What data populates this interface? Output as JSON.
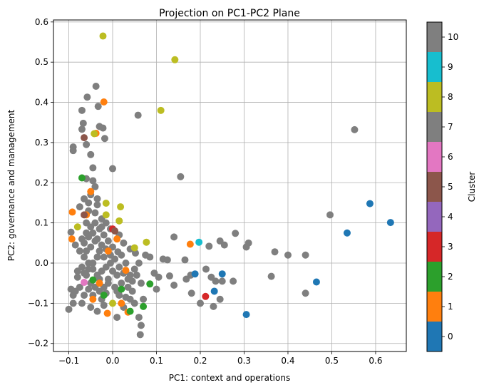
{
  "chart_data": {
    "type": "scatter",
    "title": "Projection on PC1-PC2 Plane",
    "xlabel": "PC1: context and operations",
    "ylabel": "PC2: governance and management",
    "xlim": [
      -0.135,
      0.67
    ],
    "ylim": [
      -0.22,
      0.605
    ],
    "x_ticks": [
      -0.1,
      0.0,
      0.1,
      0.2,
      0.3,
      0.4,
      0.5,
      0.6
    ],
    "y_ticks": [
      -0.2,
      -0.1,
      0.0,
      0.1,
      0.2,
      0.3,
      0.4,
      0.5,
      0.6
    ],
    "x_tick_labels": [
      "−0.1",
      "0.0",
      "0.1",
      "0.2",
      "0.3",
      "0.4",
      "0.5",
      "0.6"
    ],
    "y_tick_labels": [
      "−0.2",
      "−0.1",
      "0.0",
      "0.1",
      "0.2",
      "0.3",
      "0.4",
      "0.5",
      "0.6"
    ],
    "grid": true,
    "colorbar": {
      "label": "Cluster",
      "ticks": [
        "0",
        "1",
        "2",
        "3",
        "4",
        "5",
        "6",
        "7",
        "8",
        "9",
        "10"
      ],
      "colors": [
        "#1f77b4",
        "#ff7f0e",
        "#2ca02c",
        "#d62728",
        "#9467bd",
        "#8c564b",
        "#e377c2",
        "#7f7f7f",
        "#bcbd22",
        "#17becf",
        "#7f7f7f"
      ]
    },
    "points": [
      {
        "x": 0.587,
        "y": 0.148,
        "c": 0
      },
      {
        "x": 0.634,
        "y": 0.101,
        "c": 0
      },
      {
        "x": 0.535,
        "y": 0.075,
        "c": 0
      },
      {
        "x": 0.465,
        "y": -0.047,
        "c": 0
      },
      {
        "x": 0.305,
        "y": -0.128,
        "c": 0
      },
      {
        "x": 0.232,
        "y": -0.07,
        "c": 0
      },
      {
        "x": 0.188,
        "y": -0.027,
        "c": 0
      },
      {
        "x": 0.25,
        "y": -0.027,
        "c": 0
      },
      {
        "x": -0.02,
        "y": 0.401,
        "c": 1
      },
      {
        "x": -0.038,
        "y": 0.323,
        "c": 1
      },
      {
        "x": -0.092,
        "y": 0.127,
        "c": 1
      },
      {
        "x": -0.05,
        "y": 0.178,
        "c": 1
      },
      {
        "x": -0.093,
        "y": 0.06,
        "c": 1
      },
      {
        "x": -0.06,
        "y": 0.12,
        "c": 1
      },
      {
        "x": 0.177,
        "y": 0.047,
        "c": 1
      },
      {
        "x": -0.012,
        "y": -0.125,
        "c": 1
      },
      {
        "x": 0.035,
        "y": -0.122,
        "c": 1
      },
      {
        "x": -0.045,
        "y": -0.09,
        "c": 1
      },
      {
        "x": -0.01,
        "y": 0.03,
        "c": 1
      },
      {
        "x": 0.02,
        "y": -0.1,
        "c": 1
      },
      {
        "x": 0.03,
        "y": -0.018,
        "c": 1
      },
      {
        "x": -0.03,
        "y": -0.05,
        "c": 1
      },
      {
        "x": 0.01,
        "y": 0.06,
        "c": 1
      },
      {
        "x": -0.07,
        "y": 0.212,
        "c": 2
      },
      {
        "x": -0.045,
        "y": -0.042,
        "c": 2
      },
      {
        "x": -0.02,
        "y": -0.08,
        "c": 2
      },
      {
        "x": 0.04,
        "y": -0.12,
        "c": 2
      },
      {
        "x": 0.07,
        "y": -0.108,
        "c": 2
      },
      {
        "x": 0.085,
        "y": -0.052,
        "c": 2
      },
      {
        "x": 0.02,
        "y": -0.065,
        "c": 2
      },
      {
        "x": 0.212,
        "y": -0.083,
        "c": 3
      },
      {
        "x": 0.0,
        "y": 0.085,
        "c": 3
      },
      {
        "x": -0.065,
        "y": 0.312,
        "c": 5
      },
      {
        "x": -0.065,
        "y": 0.12,
        "c": 5
      },
      {
        "x": 0.005,
        "y": 0.08,
        "c": 5
      },
      {
        "x": -0.065,
        "y": -0.048,
        "c": 6
      },
      {
        "x": 0.197,
        "y": 0.052,
        "c": 9
      },
      {
        "x": -0.022,
        "y": 0.565,
        "c": 8
      },
      {
        "x": 0.142,
        "y": 0.506,
        "c": 8
      },
      {
        "x": 0.11,
        "y": 0.38,
        "c": 8
      },
      {
        "x": -0.042,
        "y": 0.322,
        "c": 8
      },
      {
        "x": -0.015,
        "y": 0.149,
        "c": 8
      },
      {
        "x": 0.018,
        "y": 0.14,
        "c": 8
      },
      {
        "x": -0.015,
        "y": 0.12,
        "c": 8
      },
      {
        "x": 0.015,
        "y": 0.105,
        "c": 8
      },
      {
        "x": 0.077,
        "y": 0.052,
        "c": 8
      },
      {
        "x": 0.05,
        "y": 0.038,
        "c": 8
      },
      {
        "x": -0.08,
        "y": 0.09,
        "c": 8
      },
      {
        "x": 0.0,
        "y": -0.1,
        "c": 8
      },
      {
        "x": -0.038,
        "y": 0.44,
        "c": 7
      },
      {
        "x": -0.058,
        "y": 0.413,
        "c": 7
      },
      {
        "x": -0.033,
        "y": 0.39,
        "c": 7
      },
      {
        "x": -0.07,
        "y": 0.38,
        "c": 7
      },
      {
        "x": 0.058,
        "y": 0.368,
        "c": 7
      },
      {
        "x": -0.067,
        "y": 0.348,
        "c": 7
      },
      {
        "x": -0.03,
        "y": 0.34,
        "c": 7
      },
      {
        "x": -0.022,
        "y": 0.336,
        "c": 7
      },
      {
        "x": -0.07,
        "y": 0.333,
        "c": 7
      },
      {
        "x": 0.552,
        "y": 0.332,
        "c": 7
      },
      {
        "x": -0.018,
        "y": 0.31,
        "c": 7
      },
      {
        "x": -0.06,
        "y": 0.295,
        "c": 7
      },
      {
        "x": -0.09,
        "y": 0.289,
        "c": 7
      },
      {
        "x": -0.09,
        "y": 0.28,
        "c": 7
      },
      {
        "x": -0.05,
        "y": 0.27,
        "c": 7
      },
      {
        "x": -0.045,
        "y": 0.237,
        "c": 7
      },
      {
        "x": 0.0,
        "y": 0.235,
        "c": 7
      },
      {
        "x": -0.06,
        "y": 0.21,
        "c": 7
      },
      {
        "x": 0.155,
        "y": 0.215,
        "c": 7
      },
      {
        "x": -0.04,
        "y": 0.19,
        "c": 7
      },
      {
        "x": -0.05,
        "y": 0.17,
        "c": 7
      },
      {
        "x": -0.065,
        "y": 0.16,
        "c": 7
      },
      {
        "x": -0.035,
        "y": 0.145,
        "c": 7
      },
      {
        "x": -0.075,
        "y": 0.14,
        "c": 7
      },
      {
        "x": -0.055,
        "y": 0.13,
        "c": 7
      },
      {
        "x": -0.025,
        "y": 0.11,
        "c": 7
      },
      {
        "x": 0.496,
        "y": 0.12,
        "c": 7
      },
      {
        "x": -0.095,
        "y": 0.077,
        "c": 7
      },
      {
        "x": 0.28,
        "y": 0.074,
        "c": 7
      },
      {
        "x": 0.14,
        "y": 0.065,
        "c": 7
      },
      {
        "x": 0.245,
        "y": 0.055,
        "c": 7
      },
      {
        "x": 0.31,
        "y": 0.05,
        "c": 7
      },
      {
        "x": 0.255,
        "y": 0.045,
        "c": 7
      },
      {
        "x": 0.305,
        "y": 0.04,
        "c": 7
      },
      {
        "x": 0.22,
        "y": 0.042,
        "c": 7
      },
      {
        "x": 0.37,
        "y": 0.028,
        "c": 7
      },
      {
        "x": 0.4,
        "y": 0.02,
        "c": 7
      },
      {
        "x": 0.44,
        "y": 0.02,
        "c": 7
      },
      {
        "x": 0.075,
        "y": 0.02,
        "c": 7
      },
      {
        "x": 0.085,
        "y": 0.015,
        "c": 7
      },
      {
        "x": 0.115,
        "y": 0.01,
        "c": 7
      },
      {
        "x": 0.125,
        "y": 0.008,
        "c": 7
      },
      {
        "x": 0.165,
        "y": 0.008,
        "c": 7
      },
      {
        "x": 0.052,
        "y": 0.025,
        "c": 7
      },
      {
        "x": 0.04,
        "y": 0.035,
        "c": 7
      },
      {
        "x": 0.012,
        "y": 0.028,
        "c": 7
      },
      {
        "x": 0.362,
        "y": -0.033,
        "c": 7
      },
      {
        "x": 0.275,
        "y": -0.045,
        "c": 7
      },
      {
        "x": 0.44,
        "y": -0.075,
        "c": 7
      },
      {
        "x": 0.235,
        "y": -0.045,
        "c": 7
      },
      {
        "x": 0.225,
        "y": -0.035,
        "c": 7
      },
      {
        "x": 0.213,
        "y": -0.015,
        "c": 7
      },
      {
        "x": 0.25,
        "y": -0.045,
        "c": 7
      },
      {
        "x": 0.178,
        "y": -0.03,
        "c": 7
      },
      {
        "x": 0.168,
        "y": -0.04,
        "c": 7
      },
      {
        "x": 0.13,
        "y": -0.032,
        "c": 7
      },
      {
        "x": 0.095,
        "y": -0.025,
        "c": 7
      },
      {
        "x": 0.105,
        "y": -0.035,
        "c": 7
      },
      {
        "x": 0.14,
        "y": -0.055,
        "c": 7
      },
      {
        "x": 0.1,
        "y": -0.065,
        "c": 7
      },
      {
        "x": 0.245,
        "y": -0.09,
        "c": 7
      },
      {
        "x": 0.23,
        "y": -0.108,
        "c": 7
      },
      {
        "x": 0.2,
        "y": -0.1,
        "c": 7
      },
      {
        "x": 0.18,
        "y": -0.075,
        "c": 7
      },
      {
        "x": 0.06,
        "y": -0.135,
        "c": 7
      },
      {
        "x": 0.065,
        "y": -0.155,
        "c": 7
      },
      {
        "x": 0.063,
        "y": -0.178,
        "c": 7
      },
      {
        "x": 0.05,
        "y": -0.1,
        "c": 7
      },
      {
        "x": 0.07,
        "y": -0.09,
        "c": 7
      },
      {
        "x": 0.065,
        "y": -0.05,
        "c": 7
      },
      {
        "x": 0.045,
        "y": -0.07,
        "c": 7
      },
      {
        "x": 0.055,
        "y": -0.03,
        "c": 7
      },
      {
        "x": 0.035,
        "y": -0.04,
        "c": 7
      },
      {
        "x": 0.02,
        "y": -0.05,
        "c": 7
      },
      {
        "x": 0.01,
        "y": -0.03,
        "c": 7
      },
      {
        "x": 0.03,
        "y": 0.0,
        "c": 7
      },
      {
        "x": 0.02,
        "y": 0.02,
        "c": 7
      },
      {
        "x": 0.005,
        "y": 0.01,
        "c": 7
      },
      {
        "x": -0.005,
        "y": 0.0,
        "c": 7
      },
      {
        "x": -0.015,
        "y": -0.01,
        "c": 7
      },
      {
        "x": -0.025,
        "y": -0.02,
        "c": 7
      },
      {
        "x": -0.035,
        "y": -0.03,
        "c": 7
      },
      {
        "x": -0.045,
        "y": -0.015,
        "c": 7
      },
      {
        "x": -0.055,
        "y": 0.0,
        "c": 7
      },
      {
        "x": -0.065,
        "y": 0.015,
        "c": 7
      },
      {
        "x": -0.075,
        "y": 0.03,
        "c": 7
      },
      {
        "x": -0.085,
        "y": 0.045,
        "c": 7
      },
      {
        "x": -0.07,
        "y": 0.06,
        "c": 7
      },
      {
        "x": -0.06,
        "y": 0.075,
        "c": 7
      },
      {
        "x": -0.05,
        "y": 0.09,
        "c": 7
      },
      {
        "x": -0.04,
        "y": 0.1,
        "c": 7
      },
      {
        "x": -0.03,
        "y": 0.085,
        "c": 7
      },
      {
        "x": -0.02,
        "y": 0.07,
        "c": 7
      },
      {
        "x": -0.01,
        "y": 0.055,
        "c": 7
      },
      {
        "x": 0.0,
        "y": 0.04,
        "c": 7
      },
      {
        "x": -0.05,
        "y": 0.04,
        "c": 7
      },
      {
        "x": -0.04,
        "y": 0.055,
        "c": 7
      },
      {
        "x": -0.03,
        "y": 0.03,
        "c": 7
      },
      {
        "x": -0.02,
        "y": 0.015,
        "c": 7
      },
      {
        "x": -0.06,
        "y": 0.03,
        "c": 7
      },
      {
        "x": -0.07,
        "y": -0.01,
        "c": 7
      },
      {
        "x": -0.08,
        "y": -0.02,
        "c": 7
      },
      {
        "x": -0.06,
        "y": -0.03,
        "c": 7
      },
      {
        "x": -0.05,
        "y": -0.05,
        "c": 7
      },
      {
        "x": -0.04,
        "y": -0.06,
        "c": 7
      },
      {
        "x": -0.03,
        "y": -0.07,
        "c": 7
      },
      {
        "x": -0.02,
        "y": -0.06,
        "c": 7
      },
      {
        "x": -0.01,
        "y": -0.04,
        "c": 7
      },
      {
        "x": 0.0,
        "y": -0.02,
        "c": 7
      },
      {
        "x": 0.01,
        "y": -0.07,
        "c": 7
      },
      {
        "x": -0.075,
        "y": -0.06,
        "c": 7
      },
      {
        "x": -0.085,
        "y": -0.07,
        "c": 7
      },
      {
        "x": -0.09,
        "y": -0.08,
        "c": 7
      },
      {
        "x": -0.1,
        "y": -0.115,
        "c": 7
      },
      {
        "x": -0.09,
        "y": -0.1,
        "c": 7
      },
      {
        "x": -0.07,
        "y": -0.1,
        "c": 7
      },
      {
        "x": -0.05,
        "y": -0.11,
        "c": 7
      },
      {
        "x": -0.035,
        "y": -0.12,
        "c": 7
      },
      {
        "x": -0.02,
        "y": -0.105,
        "c": 7
      },
      {
        "x": 0.01,
        "y": -0.135,
        "c": 7
      },
      {
        "x": 0.025,
        "y": -0.11,
        "c": 7
      },
      {
        "x": 0.04,
        "y": -0.09,
        "c": 7
      },
      {
        "x": -0.095,
        "y": -0.065,
        "c": 7
      },
      {
        "x": -0.08,
        "y": -0.035,
        "c": 7
      },
      {
        "x": -0.06,
        "y": 0.1,
        "c": 7
      },
      {
        "x": -0.04,
        "y": 0.125,
        "c": 7
      },
      {
        "x": -0.055,
        "y": 0.15,
        "c": 7
      },
      {
        "x": -0.035,
        "y": 0.16,
        "c": 7
      },
      {
        "x": -0.045,
        "y": 0.205,
        "c": 7
      },
      {
        "x": -0.025,
        "y": 0.09,
        "c": 7
      },
      {
        "x": -0.015,
        "y": 0.1,
        "c": 7
      },
      {
        "x": -0.005,
        "y": 0.085,
        "c": 7
      },
      {
        "x": 0.015,
        "y": 0.07,
        "c": 7
      },
      {
        "x": 0.025,
        "y": 0.05,
        "c": 7
      },
      {
        "x": -0.065,
        "y": 0.05,
        "c": 7
      },
      {
        "x": -0.055,
        "y": 0.065,
        "c": 7
      },
      {
        "x": -0.045,
        "y": 0.075,
        "c": 7
      },
      {
        "x": -0.035,
        "y": 0.06,
        "c": 7
      },
      {
        "x": -0.025,
        "y": 0.045,
        "c": 7
      },
      {
        "x": -0.015,
        "y": 0.035,
        "c": 7
      },
      {
        "x": -0.005,
        "y": 0.02,
        "c": 7
      },
      {
        "x": 0.015,
        "y": -0.01,
        "c": 7
      },
      {
        "x": 0.025,
        "y": -0.025,
        "c": 7
      },
      {
        "x": 0.035,
        "y": -0.06,
        "c": 7
      },
      {
        "x": 0.045,
        "y": -0.045,
        "c": 7
      },
      {
        "x": -0.015,
        "y": -0.075,
        "c": 7
      },
      {
        "x": -0.025,
        "y": -0.09,
        "c": 7
      },
      {
        "x": -0.045,
        "y": -0.08,
        "c": 7
      },
      {
        "x": -0.055,
        "y": -0.065,
        "c": 7
      },
      {
        "x": -0.065,
        "y": -0.08,
        "c": 7
      },
      {
        "x": -0.035,
        "y": 0.015,
        "c": 7
      },
      {
        "x": -0.045,
        "y": 0.0,
        "c": 7
      },
      {
        "x": -0.055,
        "y": -0.015,
        "c": 7
      },
      {
        "x": -0.065,
        "y": -0.025,
        "c": 7
      },
      {
        "x": -0.03,
        "y": -0.04,
        "c": 7
      },
      {
        "x": -0.01,
        "y": -0.05,
        "c": 7
      },
      {
        "x": 0.005,
        "y": -0.06,
        "c": 7
      },
      {
        "x": 0.015,
        "y": -0.08,
        "c": 7
      },
      {
        "x": 0.03,
        "y": -0.085,
        "c": 7
      },
      {
        "x": 0.04,
        "y": -0.03,
        "c": 7
      },
      {
        "x": 0.05,
        "y": -0.015,
        "c": 7
      },
      {
        "x": 0.06,
        "y": 0.0,
        "c": 7
      }
    ]
  }
}
